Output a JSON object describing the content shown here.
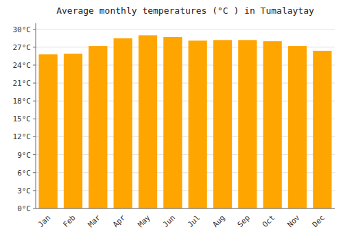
{
  "chart_data": {
    "type": "bar",
    "title": "Average monthly temperatures (°C ) in Tumalaytay",
    "categories": [
      "Jan",
      "Feb",
      "Mar",
      "Apr",
      "May",
      "Jun",
      "Jul",
      "Aug",
      "Sep",
      "Oct",
      "Nov",
      "Dec"
    ],
    "values": [
      25.8,
      25.9,
      27.2,
      28.5,
      29.0,
      28.7,
      28.1,
      28.2,
      28.2,
      28.0,
      27.2,
      26.4
    ],
    "color": "#FFA500",
    "ylim": [
      0,
      31
    ],
    "yticks": [
      {
        "value": 0,
        "label": "0°C"
      },
      {
        "value": 3,
        "label": "3°C"
      },
      {
        "value": 6,
        "label": "6°C"
      },
      {
        "value": 9,
        "label": "9°C"
      },
      {
        "value": 12,
        "label": "12°C"
      },
      {
        "value": 15,
        "label": "15°C"
      },
      {
        "value": 18,
        "label": "18°C"
      },
      {
        "value": 21,
        "label": "21°C"
      },
      {
        "value": 24,
        "label": "24°C"
      },
      {
        "value": 27,
        "label": "27°C"
      },
      {
        "value": 30,
        "label": "30°C"
      }
    ],
    "grid": true
  }
}
